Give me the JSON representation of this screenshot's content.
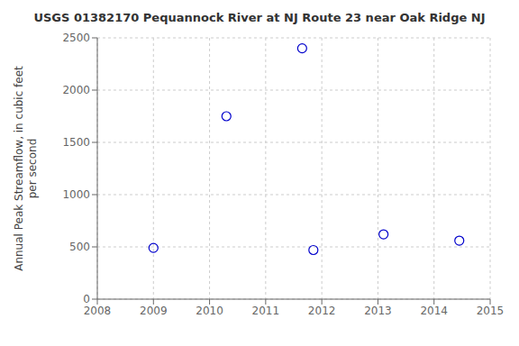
{
  "chart_data": {
    "type": "scatter",
    "title": "USGS 01382170 Pequannock River at NJ Route 23 near Oak Ridge NJ",
    "ylabel": "Annual Peak Streamflow, in cubic feet\nper second",
    "x": [
      2009.0,
      2010.3,
      2011.65,
      2011.85,
      2013.1,
      2014.45
    ],
    "values": [
      490,
      1750,
      2400,
      470,
      620,
      560
    ],
    "color": "#0000cc",
    "marker": "circle",
    "xlim": [
      2008,
      2015
    ],
    "xticks": [
      2008,
      2009,
      2010,
      2011,
      2012,
      2013,
      2014,
      2015
    ],
    "ylim": [
      0,
      2500
    ],
    "yticks": [
      0,
      500,
      1000,
      1500,
      2000,
      2500
    ],
    "grid": true
  }
}
